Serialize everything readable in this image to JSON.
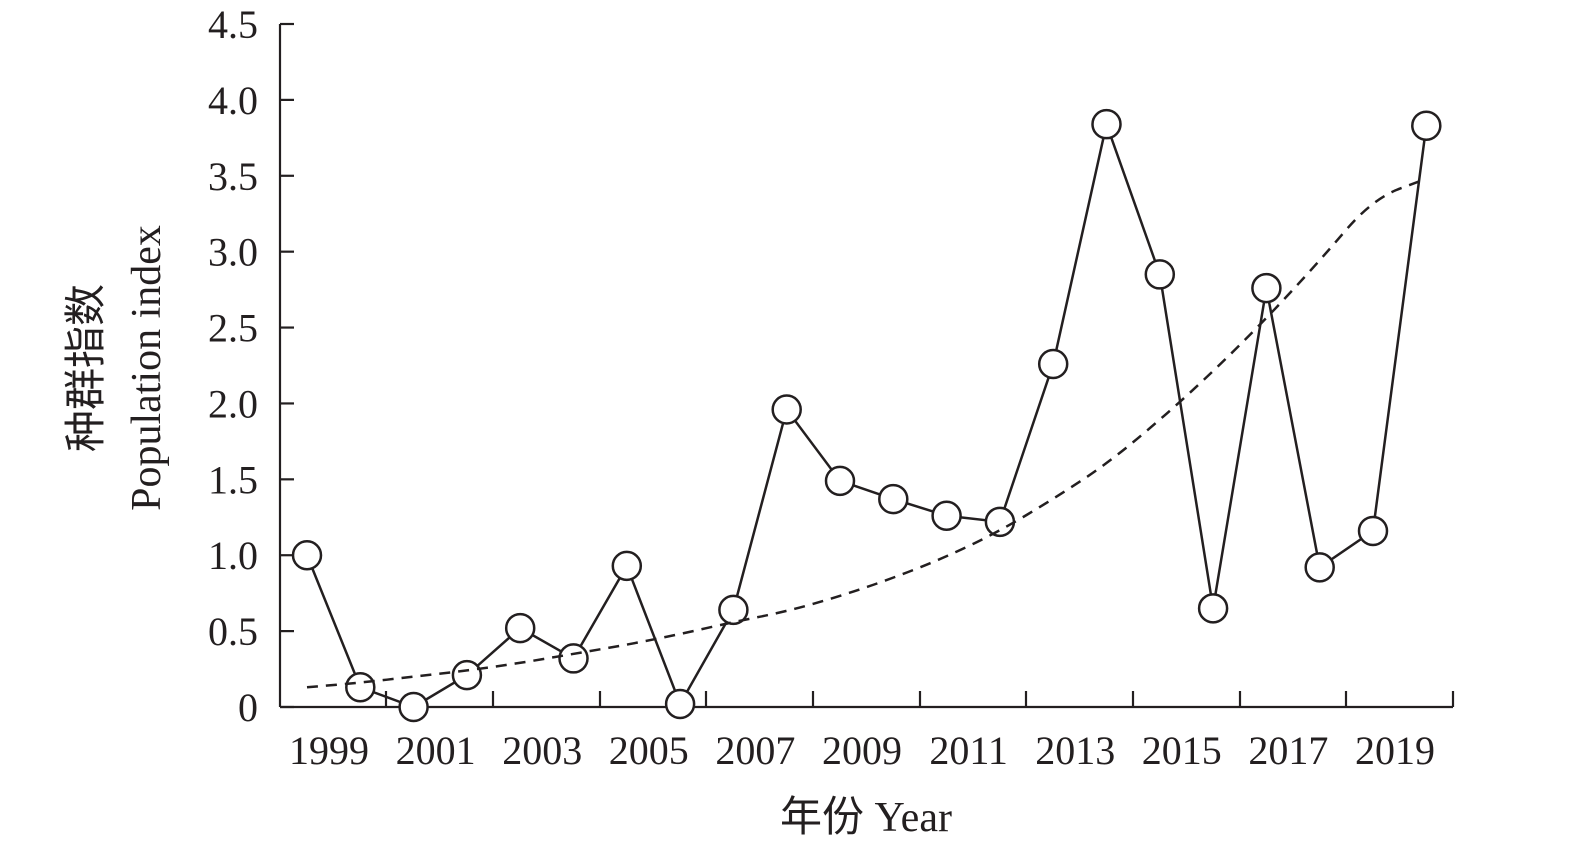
{
  "chart_data": {
    "type": "line",
    "xlabel": "年份 Year",
    "ylabel_lines": [
      "种群指数",
      "Population index"
    ],
    "x": [
      1999,
      2000,
      2001,
      2002,
      2003,
      2004,
      2005,
      2006,
      2007,
      2008,
      2009,
      2010,
      2011,
      2012,
      2013,
      2014,
      2015,
      2016,
      2017,
      2018,
      2019,
      2020
    ],
    "x_tick_labels": [
      "1999",
      "2001",
      "2003",
      "2005",
      "2007",
      "2009",
      "2011",
      "2013",
      "2015",
      "2017",
      "2019"
    ],
    "y_tick_labels": [
      "0",
      "0.5",
      "1.0",
      "1.5",
      "2.0",
      "2.5",
      "3.0",
      "3.5",
      "4.0",
      "4.5"
    ],
    "ylim": [
      0,
      4.5
    ],
    "grid": false,
    "series": [
      {
        "style": "solid-line-open-circles",
        "values": [
          1.0,
          0.13,
          0.0,
          0.21,
          0.52,
          0.32,
          0.93,
          0.02,
          0.64,
          1.96,
          1.49,
          1.37,
          1.26,
          1.22,
          2.26,
          3.84,
          2.85,
          0.65,
          2.76,
          0.92,
          1.16,
          3.83
        ]
      },
      {
        "style": "dashed-trend",
        "values": [
          0.13,
          0.16,
          0.2,
          0.24,
          0.29,
          0.35,
          0.41,
          0.48,
          0.56,
          0.63,
          0.73,
          0.85,
          0.99,
          1.16,
          1.37,
          1.6,
          1.89,
          2.21,
          2.56,
          2.94,
          3.35,
          3.48
        ]
      }
    ]
  }
}
